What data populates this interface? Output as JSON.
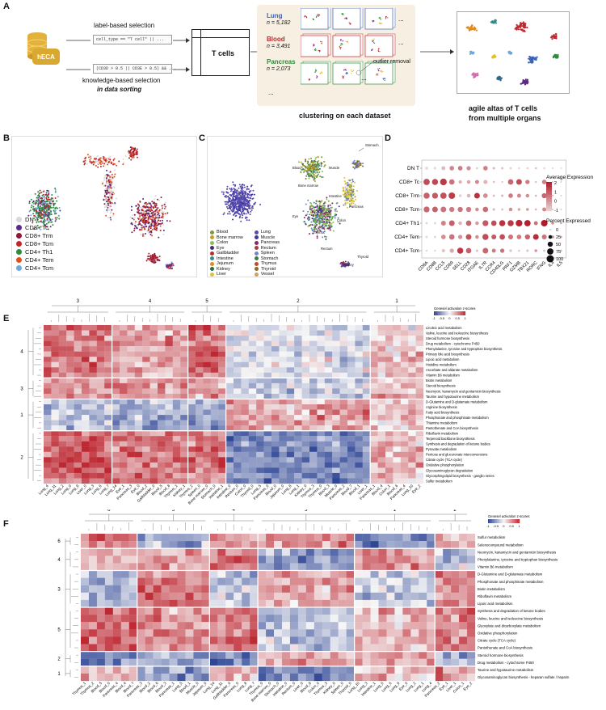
{
  "panels": {
    "A": "A",
    "B": "B",
    "C": "C",
    "D": "D",
    "E": "E",
    "F": "F"
  },
  "panel_a": {
    "db_label": "hECA",
    "label_sel": "label-based selection",
    "label_code": "cell_type == \"T cell\" || ...",
    "know_code": "(CD3D > 0.5 || CD3E > 0.5) && ...",
    "know_sel": "knowledge-based selection",
    "in_data": "in data sorting",
    "tcells": "T cells",
    "datasets": [
      {
        "organ": "Lung",
        "n": "n = 5,182",
        "color": "#3a63b8"
      },
      {
        "organ": "Blood",
        "n": "n = 3,491",
        "color": "#c0272d"
      },
      {
        "organ": "Pancreas",
        "n": "n = 2,073",
        "color": "#2e8b3c"
      }
    ],
    "ellipsis": "...",
    "outlier": "outlier removal",
    "cluster_caption": "clustering on each dataset",
    "agile_caption_1": "agile altas of T cells",
    "agile_caption_2": "from multiple organs"
  },
  "panel_b": {
    "legend": [
      {
        "label": "DN T",
        "color": "#d8d8d8"
      },
      {
        "label": "CD8+ Tc",
        "color": "#5b2a86"
      },
      {
        "label": "CD8+ Trm",
        "color": "#8b1a3a"
      },
      {
        "label": "CD8+ Tcm",
        "color": "#c0272d"
      },
      {
        "label": "CD4+ Th1",
        "color": "#2e8b3c"
      },
      {
        "label": "CD4+ Tem",
        "color": "#e0501e"
      },
      {
        "label": "CD4+ Tcm",
        "color": "#6fa8dc"
      }
    ]
  },
  "panel_c": {
    "legend_col1": [
      {
        "label": "Blood",
        "color": "#7a9a3a"
      },
      {
        "label": "Bone marrow",
        "color": "#c8a020"
      },
      {
        "label": "Colon",
        "color": "#8fbc5a"
      },
      {
        "label": "Eye",
        "color": "#4a2a7a"
      },
      {
        "label": "Gallbladder",
        "color": "#b03030"
      },
      {
        "label": "Intestine",
        "color": "#3a8a8a"
      },
      {
        "label": "Jejunum",
        "color": "#e08a20"
      },
      {
        "label": "Kidney",
        "color": "#2a6a4a"
      },
      {
        "label": "Liver",
        "color": "#e0c040"
      }
    ],
    "legend_col2": [
      {
        "label": "Lung",
        "color": "#5a4ab0"
      },
      {
        "label": "Muscle",
        "color": "#3a3a9a"
      },
      {
        "label": "Pancreas",
        "color": "#8a2a5a"
      },
      {
        "label": "Rectum",
        "color": "#a04040"
      },
      {
        "label": "Spleen",
        "color": "#6a8ad0"
      },
      {
        "label": "Stomach",
        "color": "#3a7a4a"
      },
      {
        "label": "Thymus",
        "color": "#c04a2a"
      },
      {
        "label": "Thyroid",
        "color": "#8a6a2a"
      },
      {
        "label": "Vessel",
        "color": "#d0a060"
      }
    ],
    "annotations": [
      "Stomach",
      "Blood",
      "Muscle",
      "Bone marrow",
      "Intestine",
      "Eye",
      "Pancreas",
      "Thymus",
      "Colon",
      "Rectum",
      "Kidney",
      "Thyroid"
    ]
  },
  "chart_data": [
    {
      "type": "scatter",
      "title": "",
      "rows": [
        "DN T",
        "CD8+ Tc",
        "CD8+ Trm",
        "CD8+ Tcm",
        "CD4+ Th1",
        "CD4+ Tem",
        "CD4+ Tcm"
      ],
      "genes": [
        "CD8A",
        "CD8B",
        "CCL5",
        "CD69",
        "SELL",
        "CD28",
        "ITGAE",
        "IL7R",
        "CCR4",
        "CD40LG",
        "PRF1",
        "GZMB",
        "TBX21",
        "RORC",
        "IFNG",
        "IL4",
        "IL5"
      ],
      "color_legend_title": "Average Expression",
      "color_ticks": [
        "2",
        "1",
        "0",
        "-1"
      ],
      "size_legend_title": "Percent Expressed",
      "size_ticks": [
        "0",
        "25",
        "50",
        "75",
        "100"
      ],
      "expression": [
        [
          -1,
          -1,
          -0.5,
          0.3,
          0.5,
          0.2,
          -0.8,
          0.4,
          -0.3,
          -0.5,
          -0.8,
          -0.9,
          -0.8,
          -0.5,
          -0.9,
          -0.8,
          -0.9
        ],
        [
          1.2,
          1.3,
          1.5,
          0.6,
          -0.3,
          -0.2,
          0.3,
          -0.4,
          -0.6,
          -0.8,
          0.8,
          1.2,
          0.5,
          -0.6,
          0.4,
          -0.6,
          -0.7
        ],
        [
          0.9,
          1.0,
          1.1,
          1.4,
          -0.8,
          -0.4,
          1.6,
          0.2,
          -0.5,
          -0.4,
          0.5,
          0.3,
          0.2,
          -0.3,
          0.8,
          -0.5,
          -0.7
        ],
        [
          0.8,
          0.9,
          0.6,
          0.5,
          0.6,
          0.5,
          0.2,
          0.7,
          -0.4,
          -0.6,
          0.2,
          -0.2,
          0.1,
          -0.3,
          0.3,
          -0.5,
          -0.6
        ],
        [
          -0.9,
          -0.9,
          0.4,
          0.9,
          -0.4,
          0.8,
          0.0,
          1.0,
          1.2,
          1.6,
          1.5,
          1.8,
          1.9,
          0.6,
          2.0,
          0.2,
          -0.2
        ],
        [
          -0.9,
          -0.9,
          0.2,
          0.6,
          0.1,
          1.1,
          0.2,
          1.2,
          1.0,
          1.2,
          0.6,
          0.5,
          0.8,
          1.7,
          0.6,
          0.3,
          -0.2
        ],
        [
          -0.9,
          -0.9,
          -0.6,
          -0.2,
          1.5,
          0.9,
          -0.6,
          0.8,
          0.5,
          0.6,
          -0.7,
          -0.8,
          -0.6,
          0.1,
          -0.7,
          -0.3,
          -0.5
        ]
      ],
      "percent": [
        [
          20,
          15,
          30,
          40,
          40,
          35,
          10,
          40,
          10,
          10,
          10,
          8,
          8,
          8,
          8,
          5,
          5
        ],
        [
          75,
          70,
          85,
          55,
          20,
          25,
          30,
          30,
          10,
          8,
          55,
          60,
          35,
          8,
          40,
          5,
          5
        ],
        [
          70,
          65,
          75,
          80,
          15,
          25,
          60,
          40,
          10,
          12,
          40,
          30,
          25,
          8,
          50,
          5,
          5
        ],
        [
          65,
          60,
          60,
          50,
          50,
          50,
          25,
          55,
          12,
          10,
          25,
          15,
          15,
          8,
          30,
          5,
          5
        ],
        [
          10,
          10,
          45,
          60,
          25,
          55,
          25,
          65,
          55,
          70,
          70,
          85,
          75,
          30,
          80,
          15,
          8
        ],
        [
          10,
          10,
          40,
          55,
          35,
          60,
          25,
          70,
          45,
          55,
          45,
          40,
          50,
          60,
          45,
          15,
          10
        ],
        [
          8,
          8,
          20,
          35,
          70,
          55,
          12,
          60,
          30,
          35,
          15,
          10,
          12,
          15,
          12,
          10,
          8
        ]
      ]
    },
    {
      "type": "heatmap",
      "panel": "E",
      "legend_title": "Genesel activation z-scores",
      "legend_ticks": [
        "-1",
        "-0.5",
        "0",
        "0.5",
        "1"
      ],
      "column_clusters": [
        "3",
        "4",
        "5",
        "2",
        "1"
      ],
      "row_clusters": [
        "4",
        "3",
        "1",
        "2"
      ],
      "rows": [
        "Linoleic acid metabolism",
        "Valine, leucine and isoleucine biosynthesis",
        "Steroid hormone biosynthesis",
        "Drug metabolism - cytochrome P450",
        "Phenylalanine, tyrosine and tryptophan biosynthesis",
        "Primary bile acid biosynthesis",
        "Lipoic acid metabolism",
        "Histidine metabolism",
        "Ascorbate and aldarate metabolism",
        "Vitamin B6 metabolism",
        "Biotin metabolism",
        "Steroid biosynthesis",
        "Neomycin, kanamycin and gentamicin biosynthesis",
        "Taurine and hypotaurine metabolism",
        "D-Glutamine and D-glutamate metabolism",
        "Arginine biosynthesis",
        "Fatty acid biosynthesis",
        "Phosphonate and phosphinate metabolism",
        "Thiamine metabolism",
        "Pantothenate and CoA biosynthesis",
        "Riboflavin metabolism",
        "Terpenoid backbone biosynthesis",
        "Synthesis and degradation of ketone bodies",
        "Pyruvate metabolism",
        "Pentose and glucuronate interconversions",
        "Citrate cycle (TCA cycle)",
        "Oxidative phosphorylation",
        "Glycosaminoglycan degradation",
        "Glycosphingolipid biosynthesis - ganglio series",
        "Sulfur metabolism"
      ],
      "columns": [
        "Lung_4",
        "Lung_11",
        "Lung_2",
        "Lung_0",
        "Lung_9",
        "Liver_0",
        "Lung_3",
        "Lung_6",
        "Lung_7",
        "Lung_14",
        "Eye_1",
        "Pancreas_3",
        "Eye_0",
        "Blood_2",
        "Gallbladder_0",
        "Blood_5",
        "Blood_8",
        "Thymus_1",
        "Kidney_1",
        "Thymus_2",
        "Spleen_0",
        "Bone marrow_0",
        "Stomach_0",
        "Intestine_1",
        "Intestine_0",
        "Rectum_0",
        "Colon_0",
        "Thyroid_0",
        "Lung_5",
        "Pancreas_0",
        "Blood_0",
        "Jejunum_0",
        "Lung_8",
        "Lung_1",
        "Kidney_0",
        "Thymus_3",
        "Thymus_0",
        "Blood_3",
        "Muscle_0",
        "Pancreas_2",
        "Blood_7",
        "Blood_1",
        "Liver_1",
        "Pancreas_1",
        "Blood_4",
        "Colon_1",
        "Blood_6",
        "Pancreas_4",
        "Lung_10",
        "Eye_2"
      ]
    },
    {
      "type": "heatmap",
      "panel": "F",
      "legend_title": "Genesel activation z-scores",
      "legend_ticks": [
        "-1",
        "-0.5",
        "0",
        "0.5",
        "1"
      ],
      "column_clusters": [
        "6",
        "5",
        "4",
        "3",
        "1",
        "2"
      ],
      "row_clusters": [
        "6",
        "4",
        "3",
        "5",
        "2",
        "1"
      ],
      "rows": [
        "Sulfur metabolism",
        "Selenocompound metabolism",
        "Neomycin, kanamycin and gentamicin biosynthesis",
        "Phenylalanine, tyrosine and tryptophan biosynthesis",
        "Vitamin B6 metabolism",
        "D-Glutamine and D-glutamate metabolism",
        "Phosphonate and phosphinate metabolism",
        "Biotin metabolism",
        "Riboflavin metabolism",
        "Lipoic acid metabolism",
        "Synthesis and degradation of ketone bodies",
        "Valine, leucine and isoleucine biosynthesis",
        "Glyoxylate and dicarboxylate metabolism",
        "Oxidative phosphorylation",
        "Citrate cycle (TCA cycle)",
        "Pantothenate and CoA biosynthesis",
        "Steroid hormone biosynthesis",
        "Drug metabolism - cytochrome P450",
        "Taurine and hypotaurine metabolism",
        "Glycosaminoglycan biosynthesis - heparan sulfate / heparin"
      ],
      "columns": [
        "Thymus_1",
        "Thymus_2",
        "Blood_5",
        "Blood_0",
        "Pancreas_4",
        "Blood_4",
        "Blood_7",
        "Pancreas_3",
        "Blood_2",
        "Blood_6",
        "Blood_3",
        "Pancreas_1",
        "Lung_5",
        "Blood_1",
        "Muscle_0",
        "Jejunum_0",
        "Lung_14",
        "Lung_11",
        "Gallbladder_0",
        "Pancreas_0",
        "Lung_8",
        "Lung_7",
        "Thymus_0",
        "Bone marrow_0",
        "Stomach_0",
        "Intestine_0",
        "Rectum_0",
        "Liver_0",
        "Blood_8",
        "Colon_0",
        "Thymus_3",
        "Kidney_0",
        "Spleen_0",
        "Thyroid_0",
        "Lung_10",
        "Lung_3",
        "Intestine_1",
        "Lung_0",
        "Lung_6",
        "Lung_9",
        "Eye_0",
        "Lung_2",
        "Lung_1",
        "Lung_4",
        "Pancreas_2",
        "Eye_1",
        "Liver_1",
        "Colon_1",
        "Eye_2"
      ]
    }
  ]
}
